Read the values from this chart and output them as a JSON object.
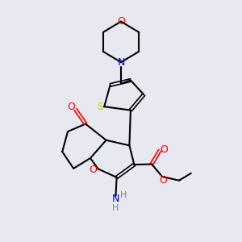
{
  "bg_color": "#e8e8f0",
  "bond_color": "#000000",
  "atom_colors": {
    "O": "#ff0000",
    "N": "#0000ff",
    "S": "#cccc00",
    "C": "#000000",
    "H": "#808080"
  }
}
